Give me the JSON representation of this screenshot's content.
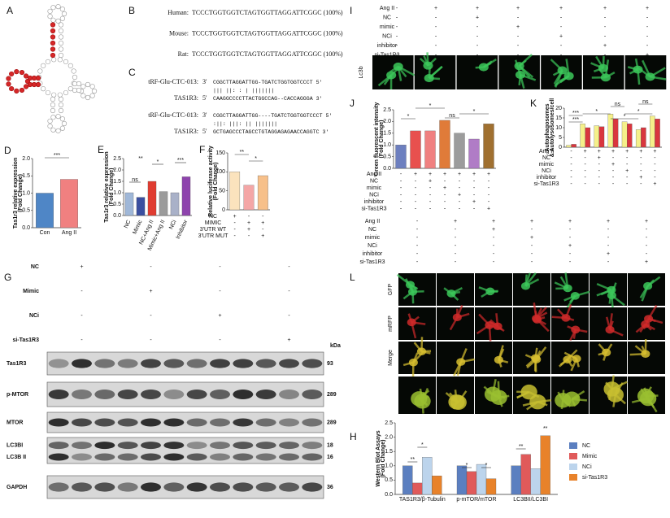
{
  "panels": [
    "A",
    "B",
    "C",
    "D",
    "E",
    "F",
    "G",
    "H",
    "I",
    "J",
    "K",
    "L"
  ],
  "alignment": [
    {
      "species": "Human:",
      "sequence": "TCCCTGGTGGTCTAGTGGTTAGGATTCGGC (100%)"
    },
    {
      "species": "Mouse:",
      "sequence": "TCCCTGGTGGTCTAGTGGTTAGGATTCGGC (100%)"
    },
    {
      "species": "Rat:",
      "sequence": "TCCCTGGTGGTCTAGTGGTTAGGATTCGGC (100%)"
    }
  ],
  "pairing": [
    {
      "rna": "tRF-Glu-CTC-013:",
      "rna_end": "3'",
      "rna_seq": "CGGCTTAGGATTGG-TGATCTGGTGGTCCCT 5'",
      "match": "     ||| ||:  :  |   |||||||",
      "target": "TAS1R3:",
      "target_end": "5'",
      "target_seq": "CAAGGCCCCTTACTGGCCAG--CACCAGGGA 3'"
    },
    {
      "rna": "tRF-Glu-CTC-013:",
      "rna_end": "3'",
      "rna_seq": "CGGCTTAGGATTGG----TGATCTGGTGGTCCCT 5'",
      "match": "   :||: |||: ||       |||||||",
      "target": "TAS1R3:",
      "target_end": "5'",
      "target_seq": "GCTGAGCCCTAGCCTGTAGGAGAGAACCAGGTC 3'"
    }
  ],
  "blot": {
    "conditions": [
      {
        "name": "NC",
        "signs": [
          "+",
          "-",
          "-",
          "-"
        ]
      },
      {
        "name": "Mimic",
        "signs": [
          "-",
          "+",
          "-",
          "-"
        ]
      },
      {
        "name": "NCi",
        "signs": [
          "-",
          "-",
          "+",
          "-"
        ]
      },
      {
        "name": "si-Tas1R3",
        "signs": [
          "-",
          "-",
          "-",
          "+"
        ]
      }
    ],
    "unit": "kDa",
    "rows": [
      {
        "names": [
          "Tas1R3"
        ],
        "kda": [
          "93"
        ]
      },
      {
        "names": [
          "p-MTOR"
        ],
        "kda": [
          "289"
        ]
      },
      {
        "names": [
          "MTOR"
        ],
        "kda": [
          "289"
        ]
      },
      {
        "names": [
          "LC3BI",
          "LC3B II"
        ],
        "kda": [
          "18",
          "16"
        ]
      },
      {
        "names": [
          "GAPDH"
        ],
        "kda": [
          "36"
        ]
      }
    ]
  },
  "imaging_I": {
    "stain": "Lc3b",
    "conditions": {
      "rows": [
        "Ang II",
        "NC",
        "mimic",
        "NCi",
        "inhibitor",
        "si-Tas1R3"
      ],
      "signs": [
        [
          "-",
          "+",
          "+",
          "+",
          "+",
          "+",
          "+"
        ],
        [
          "-",
          "-",
          "+",
          "-",
          "-",
          "-",
          "-"
        ],
        [
          "-",
          "-",
          "-",
          "+",
          "-",
          "-",
          "-"
        ],
        [
          "-",
          "-",
          "-",
          "-",
          "+",
          "-",
          "-"
        ],
        [
          "-",
          "-",
          "-",
          "-",
          "-",
          "+",
          "-"
        ],
        [
          "-",
          "-",
          "-",
          "-",
          "-",
          "-",
          "+"
        ]
      ]
    }
  },
  "imaging_L": {
    "channels": [
      "GFP",
      "mRFP",
      "Merge"
    ],
    "conditions": {
      "rows": [
        "Ang II",
        "NC",
        "mimic",
        "NCi",
        "inhibitor",
        "si-Tas1R3"
      ],
      "signs": [
        [
          "-",
          "+",
          "+",
          "+",
          "+",
          "+",
          "+"
        ],
        [
          "-",
          "-",
          "+",
          "-",
          "-",
          "-",
          "-"
        ],
        [
          "-",
          "-",
          "-",
          "+",
          "-",
          "-",
          "-"
        ],
        [
          "-",
          "-",
          "-",
          "-",
          "+",
          "-",
          "-"
        ],
        [
          "-",
          "-",
          "-",
          "-",
          "-",
          "+",
          "-"
        ],
        [
          "-",
          "-",
          "-",
          "-",
          "-",
          "-",
          "+"
        ]
      ]
    }
  },
  "chart_data": [
    {
      "type": "bar",
      "y_label": [
        "Tas1r3 relative expression",
        "(Fold Change)"
      ],
      "categories": [
        "Con",
        "Ang II"
      ],
      "series": [
        {
          "values": [
            1.0,
            1.4
          ],
          "colors": [
            "#4f86c6",
            "#f08080"
          ]
        }
      ],
      "ylim": [
        0,
        2
      ],
      "yticks": [
        {
          "value": 0,
          "label": "0.0"
        },
        {
          "value": 0.5,
          "label": "0.5"
        },
        {
          "value": 1,
          "label": "1.0"
        },
        {
          "value": 1.5,
          "label": "1.5"
        },
        {
          "value": 2,
          "label": "2.0"
        }
      ],
      "annotations": [
        "***"
      ]
    },
    {
      "type": "bar",
      "y_label": [
        "Tas1r3 relative expression",
        "(Fold Change)"
      ],
      "categories": [
        "NC",
        "Mimic",
        "NC+Ang II",
        "Mimic+Ang II",
        "NCi",
        "Inhibitor"
      ],
      "series": [
        {
          "values": [
            1.0,
            0.8,
            1.5,
            1.05,
            1.0,
            1.7
          ],
          "colors": [
            "#9fb7d8",
            "#3a4fa0",
            "#e03c31",
            "#9b9b9b",
            "#a9b1c8",
            "#8e44ad"
          ]
        }
      ],
      "ylim": [
        0,
        2.5
      ],
      "yticks": [
        {
          "value": 0,
          "label": "0.0"
        },
        {
          "value": 0.5,
          "label": "0.5"
        },
        {
          "value": 1,
          "label": "1.0"
        },
        {
          "value": 1.5,
          "label": "1.5"
        },
        {
          "value": 2,
          "label": "2.0"
        },
        {
          "value": 2.5,
          "label": "2.5"
        }
      ],
      "annotations": [
        "ns",
        "**",
        "*",
        "***"
      ]
    },
    {
      "type": "bar",
      "y_label": [
        "Relative luciferase activity",
        "(Fold Change)"
      ],
      "series": [
        {
          "values": [
            100,
            65,
            90
          ],
          "colors": [
            "#fbe3bd",
            "#f4a6a6",
            "#f7c08a"
          ]
        }
      ],
      "ylim": [
        0,
        150
      ],
      "yticks": [
        0,
        50,
        100,
        150
      ],
      "annotations": [
        "**",
        "*"
      ],
      "conditions": {
        "rows": [
          "NC",
          "MIMIC",
          "3'UTR WT",
          "3'UTR MUT"
        ],
        "signs": [
          [
            "+",
            "-",
            "-"
          ],
          [
            "-",
            "+",
            "+"
          ],
          [
            "-",
            "+",
            "-"
          ],
          [
            "-",
            "-",
            "+"
          ]
        ]
      }
    },
    {
      "type": "bar",
      "y_label": [
        "Green fluorescent intensity",
        "(Fold Change)"
      ],
      "series": [
        {
          "values": [
            1.0,
            1.6,
            1.6,
            2.05,
            1.5,
            1.25,
            1.9
          ],
          "colors": [
            "#6d7fbf",
            "#e8504e",
            "#f08080",
            "#e07b39",
            "#9c9c9c",
            "#b07cc6",
            "#a07030"
          ]
        }
      ],
      "ylim": [
        0,
        2.5
      ],
      "yticks": [
        {
          "value": 0,
          "label": "0.0"
        },
        {
          "value": 0.5,
          "label": "0.5"
        },
        {
          "value": 1,
          "label": "1.0"
        },
        {
          "value": 1.5,
          "label": "1.5"
        },
        {
          "value": 2,
          "label": "2.0"
        },
        {
          "value": 2.5,
          "label": "2.5"
        }
      ],
      "annotations": [
        "*",
        "*",
        "ns",
        "*"
      ],
      "conditions": {
        "rows": [
          "Ang II",
          "NC",
          "mimic",
          "NCi",
          "inhibitor",
          "si-Tas1R3"
        ],
        "signs": [
          [
            "-",
            "+",
            "+",
            "+",
            "+",
            "+",
            "+"
          ],
          [
            "-",
            "-",
            "+",
            "-",
            "-",
            "-",
            "-"
          ],
          [
            "-",
            "-",
            "-",
            "+",
            "-",
            "-",
            "-"
          ],
          [
            "-",
            "-",
            "-",
            "-",
            "+",
            "-",
            "-"
          ],
          [
            "-",
            "-",
            "-",
            "-",
            "-",
            "+",
            "-"
          ],
          [
            "-",
            "-",
            "-",
            "-",
            "-",
            "-",
            "+"
          ]
        ]
      }
    },
    {
      "type": "bar",
      "y_label": [
        "Autophagosomes",
        "& Autolysosomes/cell"
      ],
      "series": [
        {
          "values": [
            1,
            12,
            11,
            17,
            13,
            9,
            16
          ],
          "color": "#f5f08a"
        },
        {
          "values": [
            1.5,
            10,
            10.5,
            14.5,
            12,
            10,
            14.5
          ],
          "color": "#d9363e"
        }
      ],
      "ylim": [
        0,
        20
      ],
      "yticks": [
        0,
        5,
        10,
        15,
        20
      ],
      "annotations": [
        "***",
        "***",
        "*",
        "ns",
        "*",
        "*",
        "ns"
      ],
      "conditions": {
        "rows": [
          "Ang II",
          "NC",
          "mimic",
          "NCi",
          "inhibitor",
          "si-Tas1R3"
        ],
        "signs": [
          [
            "-",
            "+",
            "+",
            "+",
            "+",
            "+",
            "+"
          ],
          [
            "-",
            "-",
            "+",
            "-",
            "-",
            "-",
            "-"
          ],
          [
            "-",
            "-",
            "-",
            "+",
            "-",
            "-",
            "-"
          ],
          [
            "-",
            "-",
            "-",
            "-",
            "+",
            "-",
            "-"
          ],
          [
            "-",
            "-",
            "-",
            "-",
            "-",
            "+",
            "-"
          ],
          [
            "-",
            "-",
            "-",
            "-",
            "-",
            "-",
            "+"
          ]
        ]
      }
    },
    {
      "type": "bar",
      "y_label": [
        "Western Blot Assays",
        "(Fold Change)"
      ],
      "categories": [
        "TAS1R3/β-Tubulin",
        "p-mTOR/mTOR",
        "LC3BII/LC3BI"
      ],
      "series": [
        {
          "name": "NC",
          "color": "#5b7fc0",
          "values": [
            1.0,
            1.0,
            1.0
          ]
        },
        {
          "name": "Mimic",
          "color": "#e05a5a",
          "values": [
            0.4,
            0.8,
            1.4
          ]
        },
        {
          "name": "NCi",
          "color": "#bcd4ec",
          "values": [
            1.3,
            1.05,
            0.9
          ]
        },
        {
          "name": "si-Tas1R3",
          "color": "#e8822a",
          "values": [
            0.65,
            0.55,
            2.05
          ]
        }
      ],
      "ylim": [
        0,
        2.5
      ],
      "yticks": [
        {
          "value": 0,
          "label": "0.0"
        },
        {
          "value": 0.5,
          "label": "0.5"
        },
        {
          "value": 1,
          "label": "1.0"
        },
        {
          "value": 1.5,
          "label": "1.5"
        },
        {
          "value": 2,
          "label": "2.0"
        },
        {
          "value": 2.5,
          "label": "2.5"
        }
      ],
      "annotations": [
        "**",
        "*",
        "*",
        "*",
        "**",
        "**"
      ]
    }
  ]
}
